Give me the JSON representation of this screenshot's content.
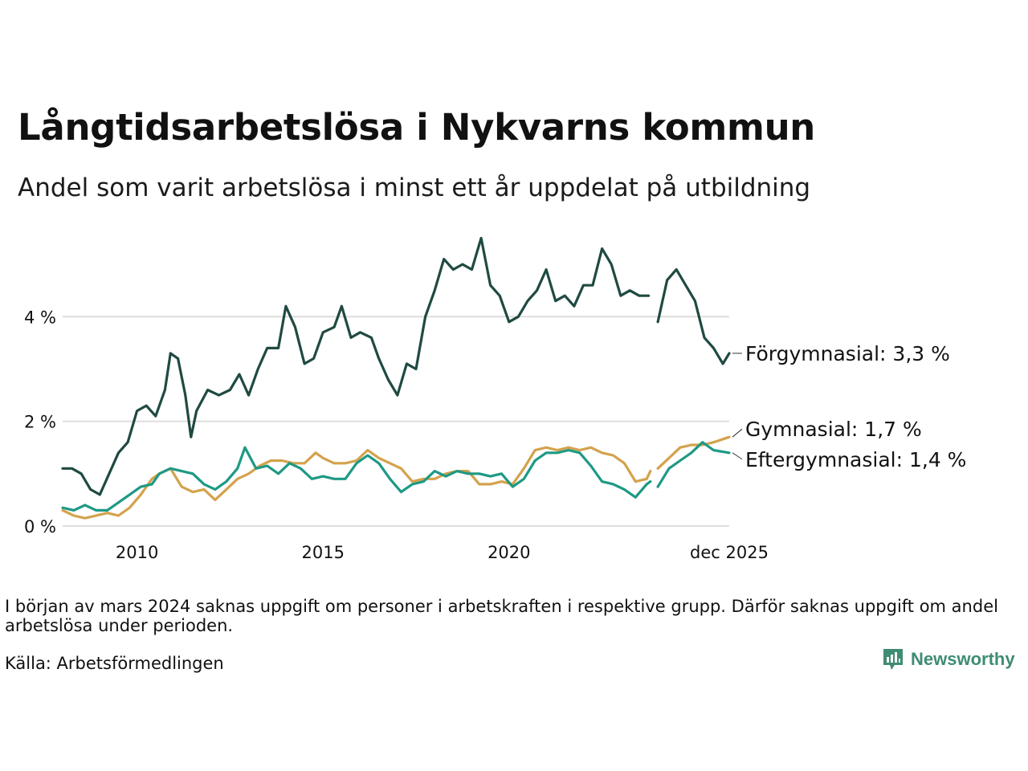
{
  "title": "Långtidsarbetslösa i Nykvarns kommun",
  "subtitle": "Andel som varit arbetslösa i minst ett år uppdelat på utbildning",
  "footnote": "I början av mars 2024 saknas uppgift om personer i arbetskraften i respektive grupp. Därför saknas uppgift om andel arbetslösa under perioden.",
  "source": "Källa: Arbetsförmedlingen",
  "brand": "Newsworthy",
  "colors": {
    "forgymnasial": "#1f4a42",
    "gymnasial": "#d4a24c",
    "eftergymnasial": "#1e9985",
    "grid": "#dddddd",
    "brand": "#3f8c74"
  },
  "chart_data": {
    "type": "line",
    "title": "Långtidsarbetslösa i Nykvarns kommun",
    "xlabel": "",
    "ylabel": "",
    "ylim": [
      0,
      5.6
    ],
    "xlim": [
      2008.0,
      2025.92
    ],
    "yticks": [
      0,
      2,
      4
    ],
    "ytick_labels": [
      "0 %",
      "2 %",
      "4 %"
    ],
    "xticks": [
      2010,
      2015,
      2020,
      2025.92
    ],
    "xtick_labels": [
      "2010",
      "2015",
      "2020",
      "dec 2025"
    ],
    "gap": [
      2023.8,
      2024.0
    ],
    "series": [
      {
        "name": "Förgymnasial",
        "end_label": "Förgymnasial: 3,3 %",
        "color": "#1f4a42",
        "points": [
          [
            2008.0,
            1.1
          ],
          [
            2008.25,
            1.1
          ],
          [
            2008.5,
            1.0
          ],
          [
            2008.75,
            0.7
          ],
          [
            2009.0,
            0.6
          ],
          [
            2009.25,
            1.0
          ],
          [
            2009.5,
            1.4
          ],
          [
            2009.75,
            1.6
          ],
          [
            2010.0,
            2.2
          ],
          [
            2010.25,
            2.3
          ],
          [
            2010.5,
            2.1
          ],
          [
            2010.75,
            2.6
          ],
          [
            2010.9,
            3.3
          ],
          [
            2011.1,
            3.2
          ],
          [
            2011.3,
            2.5
          ],
          [
            2011.45,
            1.7
          ],
          [
            2011.6,
            2.2
          ],
          [
            2011.9,
            2.6
          ],
          [
            2012.2,
            2.5
          ],
          [
            2012.5,
            2.6
          ],
          [
            2012.75,
            2.9
          ],
          [
            2013.0,
            2.5
          ],
          [
            2013.25,
            3.0
          ],
          [
            2013.5,
            3.4
          ],
          [
            2013.8,
            3.4
          ],
          [
            2014.0,
            4.2
          ],
          [
            2014.25,
            3.8
          ],
          [
            2014.5,
            3.1
          ],
          [
            2014.75,
            3.2
          ],
          [
            2015.0,
            3.7
          ],
          [
            2015.3,
            3.8
          ],
          [
            2015.5,
            4.2
          ],
          [
            2015.75,
            3.6
          ],
          [
            2016.0,
            3.7
          ],
          [
            2016.3,
            3.6
          ],
          [
            2016.5,
            3.2
          ],
          [
            2016.75,
            2.8
          ],
          [
            2017.0,
            2.5
          ],
          [
            2017.25,
            3.1
          ],
          [
            2017.5,
            3.0
          ],
          [
            2017.75,
            4.0
          ],
          [
            2018.0,
            4.5
          ],
          [
            2018.25,
            5.1
          ],
          [
            2018.5,
            4.9
          ],
          [
            2018.75,
            5.0
          ],
          [
            2019.0,
            4.9
          ],
          [
            2019.25,
            5.5
          ],
          [
            2019.5,
            4.6
          ],
          [
            2019.75,
            4.4
          ],
          [
            2020.0,
            3.9
          ],
          [
            2020.25,
            4.0
          ],
          [
            2020.5,
            4.3
          ],
          [
            2020.75,
            4.5
          ],
          [
            2021.0,
            4.9
          ],
          [
            2021.25,
            4.3
          ],
          [
            2021.5,
            4.4
          ],
          [
            2021.75,
            4.2
          ],
          [
            2022.0,
            4.6
          ],
          [
            2022.25,
            4.6
          ],
          [
            2022.5,
            5.3
          ],
          [
            2022.75,
            5.0
          ],
          [
            2023.0,
            4.4
          ],
          [
            2023.25,
            4.5
          ],
          [
            2023.5,
            4.4
          ],
          [
            2023.75,
            4.4
          ],
          [
            2024.0,
            3.9
          ],
          [
            2024.25,
            4.7
          ],
          [
            2024.5,
            4.9
          ],
          [
            2024.75,
            4.6
          ],
          [
            2025.0,
            4.3
          ],
          [
            2025.25,
            3.6
          ],
          [
            2025.5,
            3.4
          ],
          [
            2025.75,
            3.1
          ],
          [
            2025.92,
            3.3
          ]
        ]
      },
      {
        "name": "Gymnasial",
        "end_label": "Gymnasial: 1,7 %",
        "color": "#d4a24c",
        "points": [
          [
            2008.0,
            0.3
          ],
          [
            2008.3,
            0.2
          ],
          [
            2008.6,
            0.15
          ],
          [
            2008.9,
            0.2
          ],
          [
            2009.2,
            0.25
          ],
          [
            2009.5,
            0.2
          ],
          [
            2009.8,
            0.35
          ],
          [
            2010.1,
            0.6
          ],
          [
            2010.4,
            0.9
          ],
          [
            2010.6,
            1.0
          ],
          [
            2010.9,
            1.1
          ],
          [
            2011.2,
            0.75
          ],
          [
            2011.5,
            0.65
          ],
          [
            2011.8,
            0.7
          ],
          [
            2012.1,
            0.5
          ],
          [
            2012.4,
            0.7
          ],
          [
            2012.7,
            0.9
          ],
          [
            2013.0,
            1.0
          ],
          [
            2013.3,
            1.15
          ],
          [
            2013.6,
            1.25
          ],
          [
            2013.9,
            1.25
          ],
          [
            2014.2,
            1.2
          ],
          [
            2014.5,
            1.2
          ],
          [
            2014.8,
            1.4
          ],
          [
            2015.0,
            1.3
          ],
          [
            2015.3,
            1.2
          ],
          [
            2015.6,
            1.2
          ],
          [
            2015.9,
            1.25
          ],
          [
            2016.2,
            1.45
          ],
          [
            2016.5,
            1.3
          ],
          [
            2016.8,
            1.2
          ],
          [
            2017.1,
            1.1
          ],
          [
            2017.4,
            0.85
          ],
          [
            2017.7,
            0.9
          ],
          [
            2018.0,
            0.9
          ],
          [
            2018.3,
            1.0
          ],
          [
            2018.6,
            1.05
          ],
          [
            2018.9,
            1.05
          ],
          [
            2019.2,
            0.8
          ],
          [
            2019.5,
            0.8
          ],
          [
            2019.8,
            0.85
          ],
          [
            2020.1,
            0.8
          ],
          [
            2020.4,
            1.1
          ],
          [
            2020.7,
            1.45
          ],
          [
            2021.0,
            1.5
          ],
          [
            2021.3,
            1.45
          ],
          [
            2021.6,
            1.5
          ],
          [
            2021.9,
            1.45
          ],
          [
            2022.2,
            1.5
          ],
          [
            2022.5,
            1.4
          ],
          [
            2022.8,
            1.35
          ],
          [
            2023.1,
            1.2
          ],
          [
            2023.4,
            0.85
          ],
          [
            2023.7,
            0.9
          ],
          [
            2023.8,
            1.05
          ],
          [
            2024.0,
            1.1
          ],
          [
            2024.3,
            1.3
          ],
          [
            2024.6,
            1.5
          ],
          [
            2024.9,
            1.55
          ],
          [
            2025.2,
            1.55
          ],
          [
            2025.5,
            1.6
          ],
          [
            2025.92,
            1.7
          ]
        ]
      },
      {
        "name": "Eftergymnasial",
        "end_label": "Eftergymnasial: 1,4 %",
        "color": "#1e9985",
        "points": [
          [
            2008.0,
            0.35
          ],
          [
            2008.3,
            0.3
          ],
          [
            2008.6,
            0.4
          ],
          [
            2008.9,
            0.3
          ],
          [
            2009.2,
            0.3
          ],
          [
            2009.5,
            0.45
          ],
          [
            2009.8,
            0.6
          ],
          [
            2010.1,
            0.75
          ],
          [
            2010.4,
            0.8
          ],
          [
            2010.6,
            1.0
          ],
          [
            2010.9,
            1.1
          ],
          [
            2011.2,
            1.05
          ],
          [
            2011.5,
            1.0
          ],
          [
            2011.8,
            0.8
          ],
          [
            2012.1,
            0.7
          ],
          [
            2012.4,
            0.85
          ],
          [
            2012.7,
            1.1
          ],
          [
            2012.9,
            1.5
          ],
          [
            2013.2,
            1.1
          ],
          [
            2013.5,
            1.15
          ],
          [
            2013.8,
            1.0
          ],
          [
            2014.1,
            1.2
          ],
          [
            2014.4,
            1.1
          ],
          [
            2014.7,
            0.9
          ],
          [
            2015.0,
            0.95
          ],
          [
            2015.3,
            0.9
          ],
          [
            2015.6,
            0.9
          ],
          [
            2015.9,
            1.2
          ],
          [
            2016.2,
            1.35
          ],
          [
            2016.5,
            1.2
          ],
          [
            2016.8,
            0.9
          ],
          [
            2017.1,
            0.65
          ],
          [
            2017.4,
            0.8
          ],
          [
            2017.7,
            0.85
          ],
          [
            2018.0,
            1.05
          ],
          [
            2018.3,
            0.95
          ],
          [
            2018.6,
            1.05
          ],
          [
            2018.9,
            1.0
          ],
          [
            2019.2,
            1.0
          ],
          [
            2019.5,
            0.95
          ],
          [
            2019.8,
            1.0
          ],
          [
            2020.1,
            0.75
          ],
          [
            2020.4,
            0.9
          ],
          [
            2020.7,
            1.25
          ],
          [
            2021.0,
            1.4
          ],
          [
            2021.3,
            1.4
          ],
          [
            2021.6,
            1.45
          ],
          [
            2021.9,
            1.4
          ],
          [
            2022.2,
            1.15
          ],
          [
            2022.5,
            0.85
          ],
          [
            2022.8,
            0.8
          ],
          [
            2023.1,
            0.7
          ],
          [
            2023.4,
            0.55
          ],
          [
            2023.7,
            0.8
          ],
          [
            2023.8,
            0.85
          ],
          [
            2024.0,
            0.75
          ],
          [
            2024.3,
            1.1
          ],
          [
            2024.6,
            1.25
          ],
          [
            2024.9,
            1.4
          ],
          [
            2025.2,
            1.6
          ],
          [
            2025.5,
            1.45
          ],
          [
            2025.92,
            1.4
          ]
        ]
      }
    ]
  }
}
